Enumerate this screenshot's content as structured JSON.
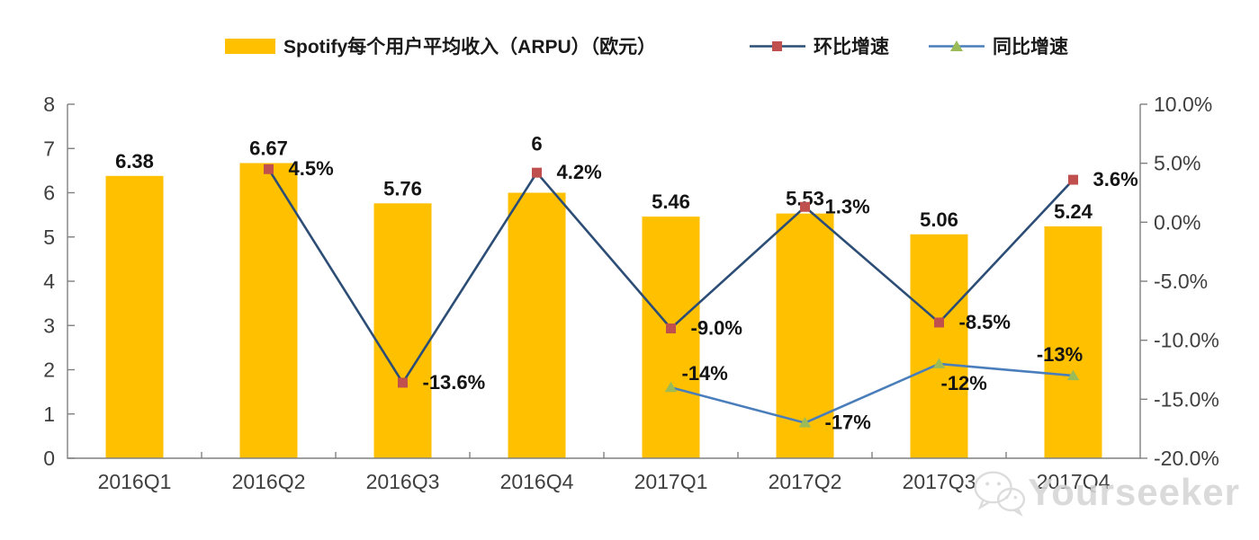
{
  "legend": {
    "items": [
      {
        "label": "Spotify每个用户平均收入（ARPU）（欧元）",
        "swatch": "bar",
        "color": "#FFC000"
      },
      {
        "label": "环比增速",
        "swatch": "line-square",
        "line_color": "#2C4D75",
        "marker_color": "#C0504D"
      },
      {
        "label": "同比增速",
        "swatch": "line-triangle",
        "line_color": "#4A7EBB",
        "marker_color": "#9BBB59"
      }
    ]
  },
  "watermark": {
    "text": "Yourseeker",
    "icon": "wechat-icon"
  },
  "chart_data": {
    "type": "combo",
    "title": "Spotify每个用户平均收入（ARPU）（欧元）",
    "grid": false,
    "legend_position": "top",
    "categories": [
      "2016Q1",
      "2016Q2",
      "2016Q3",
      "2016Q4",
      "2017Q1",
      "2017Q2",
      "2017Q3",
      "2017Q4"
    ],
    "left_axis": {
      "min": 0,
      "max": 8,
      "step": 1,
      "ticks": [
        {
          "value": 8,
          "label": "8"
        },
        {
          "value": 7,
          "label": "7"
        },
        {
          "value": 6,
          "label": "6"
        },
        {
          "value": 5,
          "label": "5"
        },
        {
          "value": 4,
          "label": "4"
        },
        {
          "value": 3,
          "label": "3"
        },
        {
          "value": 2,
          "label": "2"
        },
        {
          "value": 1,
          "label": "1"
        },
        {
          "value": 0,
          "label": "0"
        }
      ]
    },
    "right_axis": {
      "min": -20,
      "max": 10,
      "step": 5,
      "ticks": [
        {
          "value": 10,
          "label": "10.0%"
        },
        {
          "value": 5,
          "label": "5.0%"
        },
        {
          "value": 0,
          "label": "0.0%"
        },
        {
          "value": -5,
          "label": "-5.0%"
        },
        {
          "value": -10,
          "label": "-10.0%"
        },
        {
          "value": -15,
          "label": "-15.0%"
        },
        {
          "value": -20,
          "label": "-20.0%"
        }
      ]
    },
    "series": [
      {
        "name": "Spotify每个用户平均收入（ARPU）（欧元）",
        "type": "bar",
        "axis": "left",
        "color": "#FFC000",
        "values": [
          6.38,
          6.67,
          5.76,
          6,
          5.46,
          5.53,
          5.06,
          5.24
        ],
        "labels": [
          "6.38",
          "6.67",
          "5.76",
          "6",
          "5.46",
          "5.53",
          "5.06",
          "5.24"
        ],
        "label_dy": [
          0,
          0,
          0,
          -38,
          0,
          0,
          0,
          0
        ]
      },
      {
        "name": "环比增速",
        "type": "line",
        "axis": "right",
        "line_color": "#2C4D75",
        "marker": "square",
        "marker_color": "#C0504D",
        "values": [
          null,
          4.5,
          -13.6,
          4.2,
          -9.0,
          1.3,
          -8.5,
          3.6
        ],
        "labels": [
          null,
          "4.5%",
          "-13.6%",
          "4.2%",
          "-9.0%",
          "1.3%",
          "-8.5%",
          "3.6%"
        ],
        "label_placement": [
          null,
          "right",
          "right",
          "right",
          "right",
          "right",
          "right",
          "right"
        ]
      },
      {
        "name": "同比增速",
        "type": "line",
        "axis": "right",
        "line_color": "#4A7EBB",
        "marker": "triangle",
        "marker_color": "#9BBB59",
        "values": [
          null,
          null,
          null,
          null,
          -14,
          -17,
          -12,
          -13
        ],
        "labels": [
          null,
          null,
          null,
          null,
          "-14%",
          "-17%",
          "-12%",
          "-13%"
        ],
        "label_placement": [
          null,
          null,
          null,
          null,
          "above-right",
          "right",
          "below",
          "above"
        ]
      }
    ]
  }
}
